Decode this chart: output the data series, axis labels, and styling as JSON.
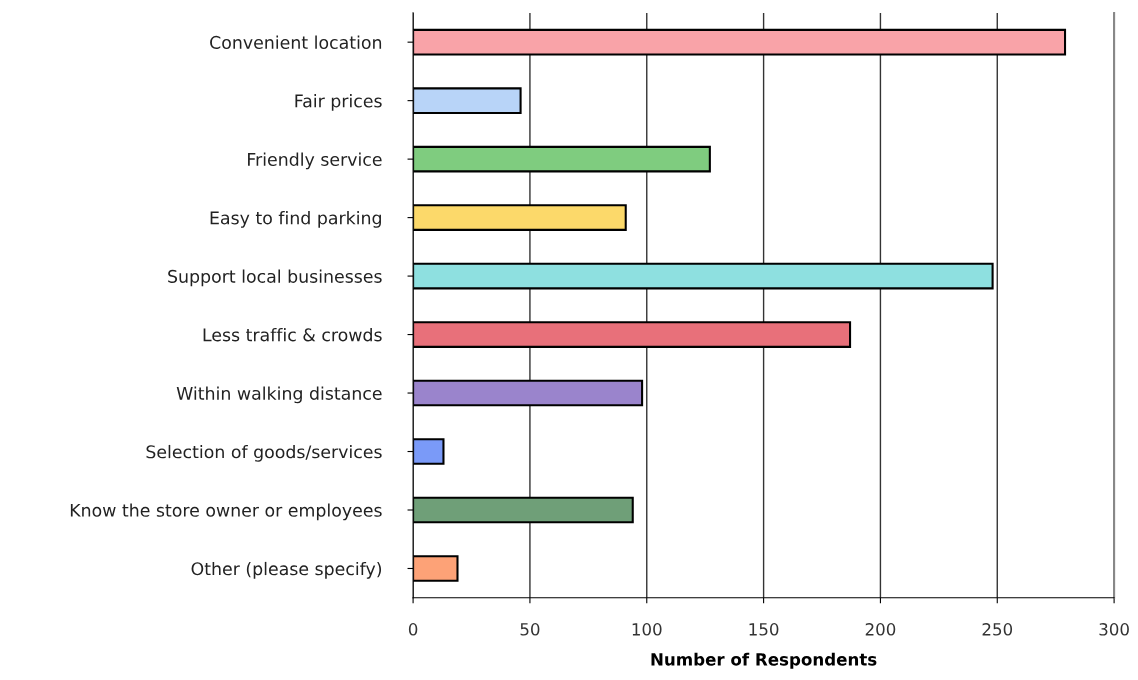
{
  "chart_data": {
    "type": "bar",
    "orientation": "horizontal",
    "xlabel": "Number of Respondents",
    "categories": [
      "Convenient location",
      "Fair prices",
      "Friendly service",
      "Easy to find parking",
      "Support local businesses",
      "Less traffic & crowds",
      "Within walking distance",
      "Selection of goods/services",
      "Know the store owner or employees",
      "Other (please specify)"
    ],
    "values": [
      279,
      46,
      127,
      91,
      248,
      187,
      98,
      13,
      94,
      19
    ],
    "colors": [
      "#f9a3a8",
      "#b8d4f8",
      "#7fcc7f",
      "#fcd96a",
      "#8ee0e0",
      "#e8707a",
      "#9a84cc",
      "#7a9af8",
      "#6f9f78",
      "#fda277"
    ],
    "xlim": [
      0,
      300
    ],
    "xticks": [
      0,
      50,
      100,
      150,
      200,
      250,
      300
    ],
    "grid": "x",
    "legend": false
  }
}
